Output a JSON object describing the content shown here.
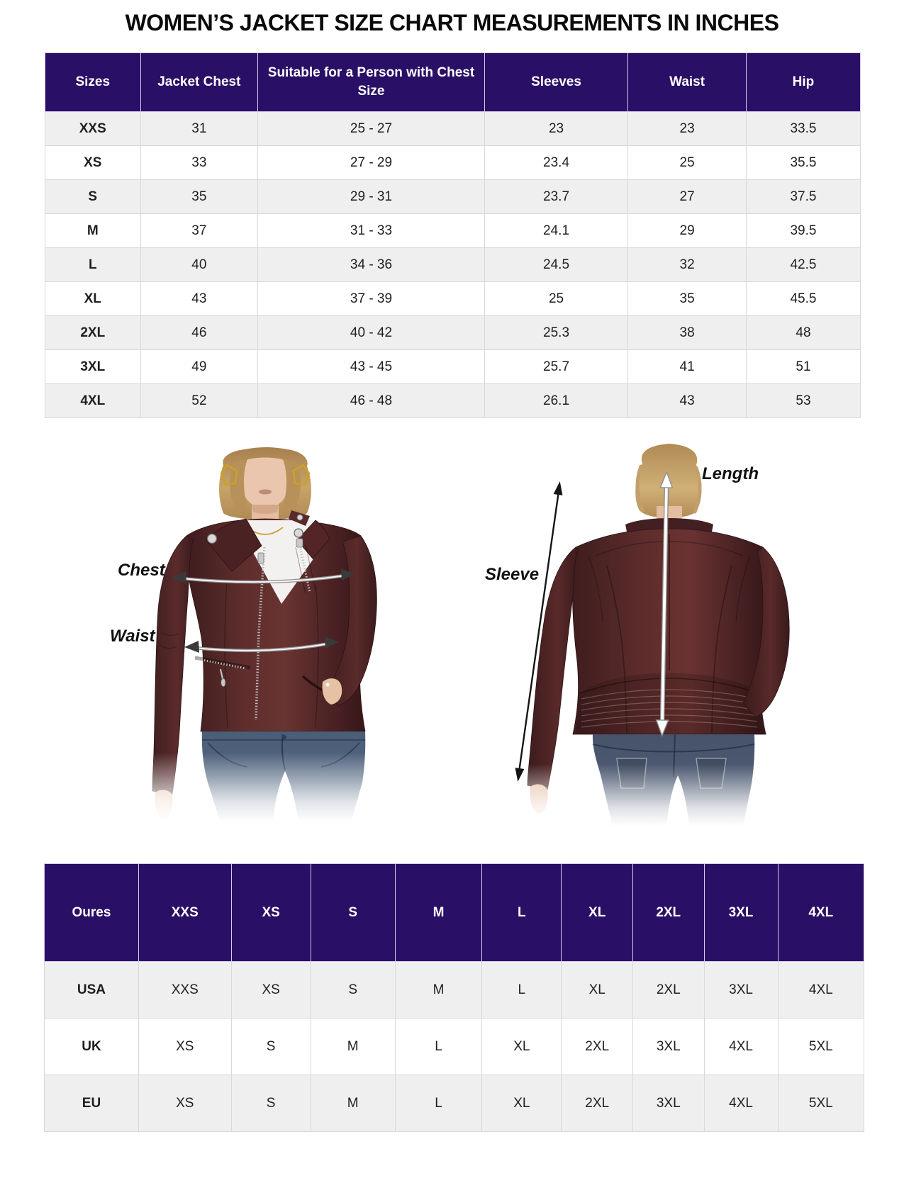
{
  "page": {
    "title": "WOMEN’S JACKET SIZE CHART MEASUREMENTS IN INCHES"
  },
  "colors": {
    "header_bg": "#2a0f66",
    "header_text": "#ffffff",
    "row_alt_bg": "#efefef",
    "body_text": "#1f1f1f",
    "jacket_brown": "#53282a",
    "jeans_blue": "#4c5f79",
    "hair_blonde": "#c7a468",
    "skin_tone": "#e9c6ad",
    "silver_hardware": "#c9c9c9",
    "gold_jewelry": "#c9a227"
  },
  "size_table": {
    "headers": [
      "Sizes",
      "Jacket Chest",
      "Suitable for a Person with Chest Size",
      "Sleeves",
      "Waist",
      "Hip"
    ],
    "rows": [
      [
        "XXS",
        "31",
        "25 - 27",
        "23",
        "23",
        "33.5"
      ],
      [
        "XS",
        "33",
        "27 - 29",
        "23.4",
        "25",
        "35.5"
      ],
      [
        "S",
        "35",
        "29 - 31",
        "23.7",
        "27",
        "37.5"
      ],
      [
        "M",
        "37",
        "31 - 33",
        "24.1",
        "29",
        "39.5"
      ],
      [
        "L",
        "40",
        "34 - 36",
        "24.5",
        "32",
        "42.5"
      ],
      [
        "XL",
        "43",
        "37 - 39",
        "25",
        "35",
        "45.5"
      ],
      [
        "2XL",
        "46",
        "40 - 42",
        "25.3",
        "38",
        "48"
      ],
      [
        "3XL",
        "49",
        "43 - 45",
        "25.7",
        "41",
        "51"
      ],
      [
        "4XL",
        "52",
        "46 - 48",
        "26.1",
        "43",
        "53"
      ]
    ]
  },
  "figures": {
    "front": {
      "chest_label": "Chest",
      "waist_label": "Waist"
    },
    "back": {
      "sleeve_label": "Sleeve",
      "length_label": "Length"
    }
  },
  "conversion_table": {
    "headers": [
      "Oures",
      "XXS",
      "XS",
      "S",
      "M",
      "L",
      "XL",
      "2XL",
      "3XL",
      "4XL"
    ],
    "rows": [
      [
        "USA",
        "XXS",
        "XS",
        "S",
        "M",
        "L",
        "XL",
        "2XL",
        "3XL",
        "4XL"
      ],
      [
        "UK",
        "XS",
        "S",
        "M",
        "L",
        "XL",
        "2XL",
        "3XL",
        "4XL",
        "5XL"
      ],
      [
        "EU",
        "XS",
        "S",
        "M",
        "L",
        "XL",
        "2XL",
        "3XL",
        "4XL",
        "5XL"
      ]
    ]
  }
}
